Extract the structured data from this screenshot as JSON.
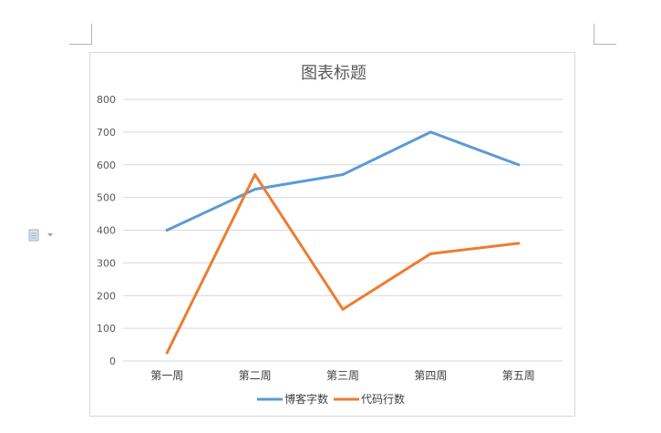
{
  "chart_data": {
    "type": "line",
    "title": "图表标题",
    "categories": [
      "第一周",
      "第二周",
      "第三周",
      "第四周",
      "第五周"
    ],
    "series": [
      {
        "name": "博客字数",
        "color": "#5b9bd5",
        "values": [
          400,
          525,
          570,
          700,
          600
        ]
      },
      {
        "name": "代码行数",
        "color": "#ed7d31",
        "values": [
          25,
          570,
          158,
          328,
          360
        ]
      }
    ],
    "ylim": [
      0,
      800
    ],
    "yticks": [
      0,
      100,
      200,
      300,
      400,
      500,
      600,
      700,
      800
    ],
    "grid": true,
    "legend": "bottom"
  },
  "toolbar": {
    "paste_icon": "paste-options-icon"
  }
}
